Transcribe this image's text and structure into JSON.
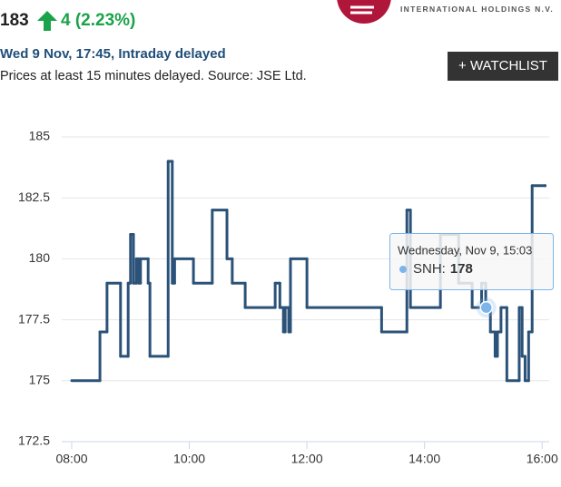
{
  "header": {
    "price": "183",
    "change": "4 (2.23%)",
    "logo_text": "INTERNATIONAL HOLDINGS N.V.",
    "timestamp": "Wed 9 Nov, 17:45, Intraday delayed",
    "note": "Prices at least 15 minutes delayed. Source: JSE Ltd.",
    "button": "+ WATCHLIST"
  },
  "chart_data": {
    "type": "line",
    "step": true,
    "series": [
      {
        "name": "SNH",
        "color": "#2b5278",
        "x": [
          8.0,
          8.48,
          8.6,
          8.83,
          8.96,
          9.0,
          9.05,
          9.1,
          9.14,
          9.17,
          9.3,
          9.33,
          9.64,
          9.71,
          9.75,
          10.07,
          10.39,
          10.64,
          10.73,
          10.95,
          11.46,
          11.54,
          11.6,
          11.63,
          11.69,
          11.72,
          12.0,
          13.27,
          13.7,
          13.76,
          14.27,
          14.58,
          14.81,
          14.97,
          15.04,
          15.12,
          15.2,
          15.24,
          15.3,
          15.4,
          15.61,
          15.66,
          15.71,
          15.77,
          15.83,
          16.05
        ],
        "values": [
          175,
          177,
          179,
          176,
          179,
          181,
          179,
          180,
          179,
          180,
          179,
          176,
          184,
          179,
          180,
          179,
          182,
          180,
          179,
          178,
          179,
          178,
          177,
          178,
          177,
          180,
          178,
          177,
          182,
          178,
          181,
          179,
          178,
          179,
          178,
          177,
          176,
          177,
          178,
          175,
          178,
          176,
          175,
          177,
          183,
          183
        ]
      }
    ],
    "xlim": [
      7.83,
      16.12
    ],
    "xticks": [
      {
        "value": 8,
        "label": "08:00"
      },
      {
        "value": 10,
        "label": "10:00"
      },
      {
        "value": 12,
        "label": "12:00"
      },
      {
        "value": 14,
        "label": "14:00"
      },
      {
        "value": 16,
        "label": "16:00"
      }
    ],
    "ylim": [
      172.5,
      185
    ],
    "yticks": [
      172.5,
      175,
      177.5,
      180,
      182.5,
      185
    ],
    "grid": true,
    "tooltip": {
      "title": "Wednesday, Nov 9, 15:03",
      "label": "SNH:",
      "value": 178,
      "x": 15.05,
      "color": "#7cb5ec"
    }
  }
}
